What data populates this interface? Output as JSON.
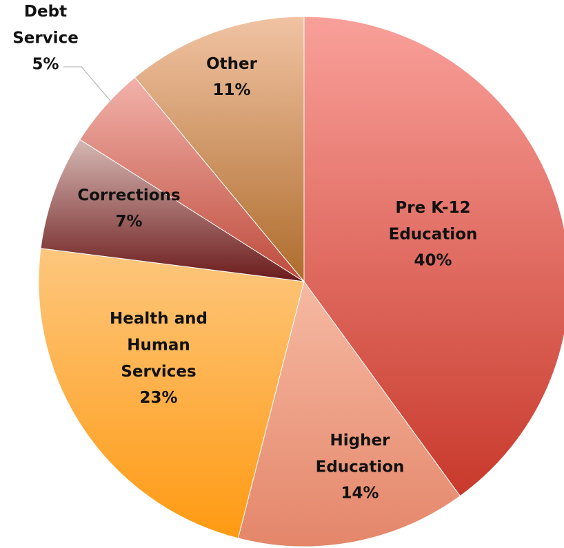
{
  "chart_data": {
    "type": "pie",
    "categories": [
      "Pre K-12 Education",
      "Higher Education",
      "Health and Human Services",
      "Corrections",
      "Debt Service",
      "Other"
    ],
    "values": [
      40,
      14,
      23,
      7,
      5,
      11
    ],
    "value_labels": [
      "40%",
      "14%",
      "23%",
      "7%",
      "5%",
      "11%"
    ],
    "colors": [
      [
        "#f9a09a",
        "#c8392b"
      ],
      [
        "#f6b9a2",
        "#e4866a"
      ],
      [
        "#fdc77e",
        "#ff9a12"
      ],
      [
        "#d6b8b4",
        "#6b1b1b"
      ],
      [
        "#f2b2aa",
        "#bd4b3b"
      ],
      [
        "#f1c3a3",
        "#ae6c2c"
      ]
    ]
  }
}
